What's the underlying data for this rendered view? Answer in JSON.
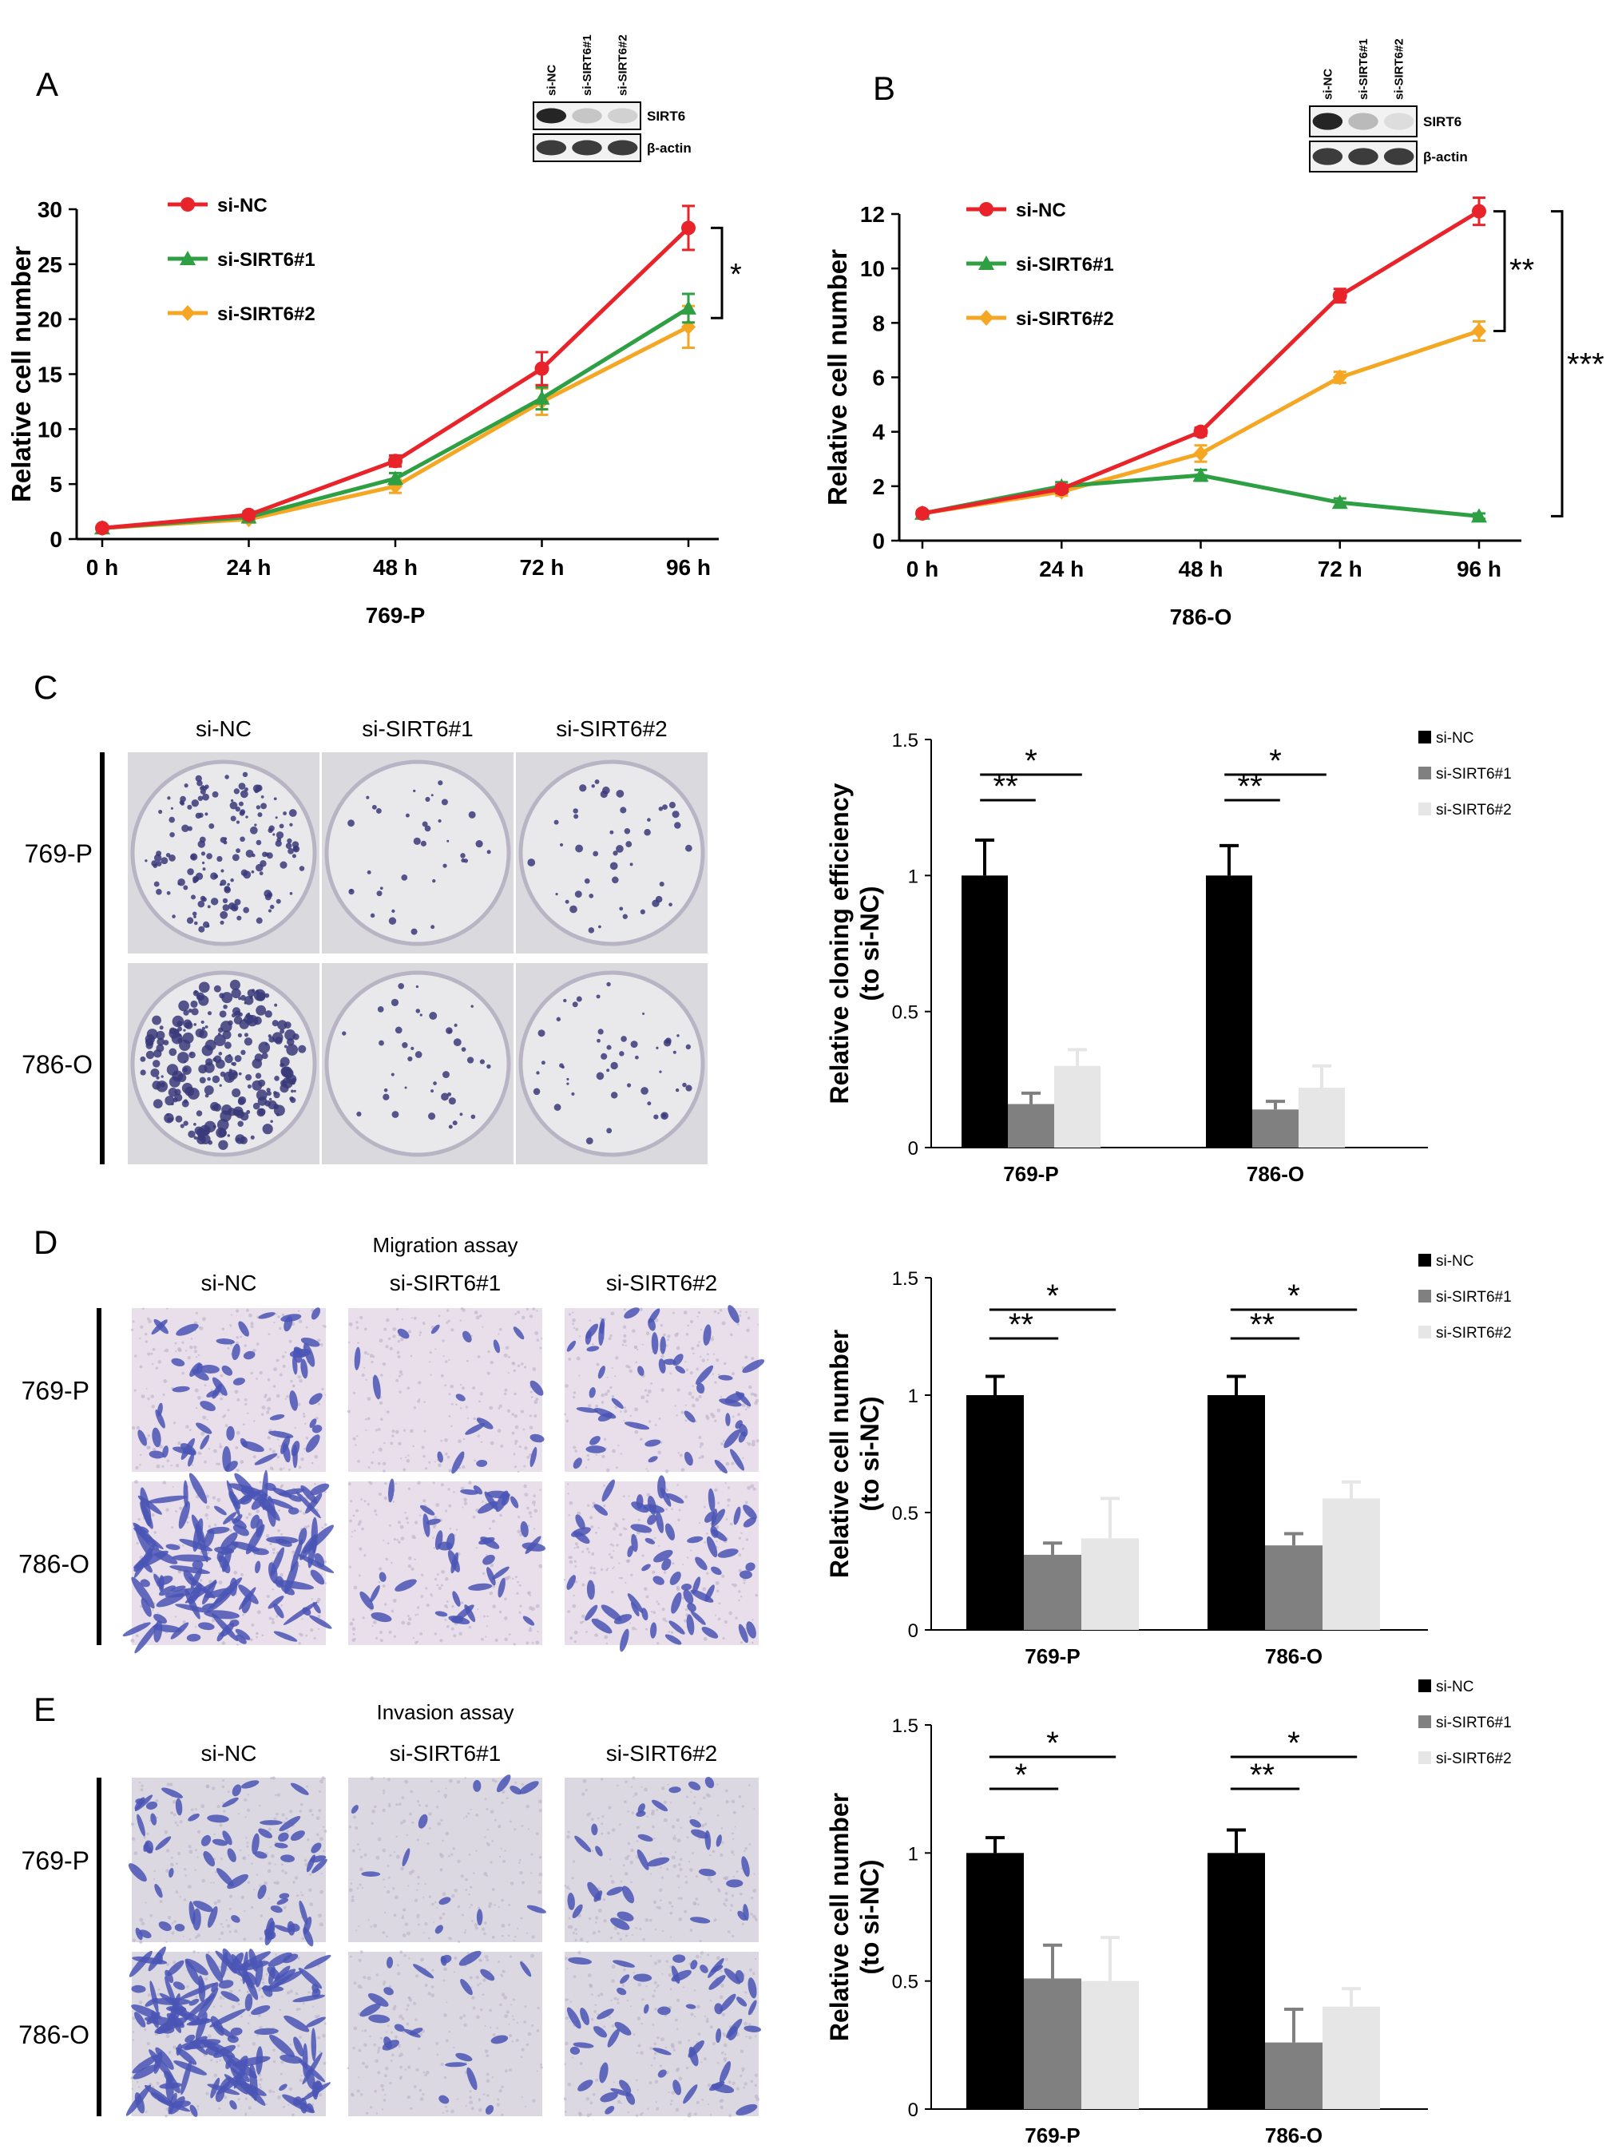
{
  "panels": {
    "A": {
      "letter": "A",
      "cell_line": "769-P",
      "blot": {
        "lanes": [
          "si-NC",
          "si-SIRT6#1",
          "si-SIRT6#2"
        ],
        "bands": [
          "SIRT6",
          "β-actin"
        ],
        "intensity": [
          [
            0.95,
            0.25,
            0.2
          ],
          [
            0.85,
            0.85,
            0.85
          ]
        ]
      },
      "sig_label": "*"
    },
    "B": {
      "letter": "B",
      "cell_line": "786-O",
      "blot": {
        "lanes": [
          "si-NC",
          "si-SIRT6#1",
          "si-SIRT6#2"
        ],
        "bands": [
          "SIRT6",
          "β-actin"
        ],
        "intensity": [
          [
            0.95,
            0.3,
            0.15
          ],
          [
            0.85,
            0.85,
            0.85
          ]
        ]
      },
      "sig_labels": [
        "**",
        "***"
      ]
    },
    "C": {
      "letter": "C",
      "columns": [
        "si-NC",
        "si-SIRT6#1",
        "si-SIRT6#2"
      ],
      "rows": [
        "769-P",
        "786-O"
      ],
      "sig": [
        "**",
        "*"
      ]
    },
    "D": {
      "letter": "D",
      "title": "Migration assay",
      "columns": [
        "si-NC",
        "si-SIRT6#1",
        "si-SIRT6#2"
      ],
      "rows": [
        "769-P",
        "786-O"
      ],
      "sig": [
        "**",
        "*"
      ]
    },
    "E": {
      "letter": "E",
      "title": "Invasion assay",
      "columns": [
        "si-NC",
        "si-SIRT6#1",
        "si-SIRT6#2"
      ],
      "rows": [
        "769-P",
        "786-O"
      ],
      "sig": [
        [
          "*",
          "*"
        ],
        [
          "**",
          "*"
        ]
      ]
    }
  },
  "colors": {
    "si_nc_line": "#e8242a",
    "si_sirt6_1_line": "#2ea043",
    "si_sirt6_2_line": "#f5a623",
    "bar_si_nc": "#000000",
    "bar_si_sirt6_1": "#808080",
    "bar_si_sirt6_2": "#e6e6e6",
    "plate_bg": "#e9e9ec",
    "colony": "#3a3a7a",
    "micro_bg": "#e8dfea",
    "cell": "#4a55b5"
  },
  "chart_data": [
    {
      "id": "A",
      "type": "line",
      "x": [
        "0 h",
        "24 h",
        "48 h",
        "72 h",
        "96 h"
      ],
      "xlabel": "769-P",
      "ylabel": "Relative cell number",
      "ylim": [
        0,
        30
      ],
      "yticks": [
        0,
        5,
        10,
        15,
        20,
        25,
        30
      ],
      "legend": "top-left",
      "series": [
        {
          "name": "si-NC",
          "values": [
            1,
            2.2,
            7.1,
            15.5,
            28.3
          ],
          "err": [
            0.2,
            0.3,
            0.5,
            1.5,
            2.0
          ],
          "marker": "circle"
        },
        {
          "name": "si-SIRT6#1",
          "values": [
            1,
            2.0,
            5.5,
            12.8,
            21.0
          ],
          "err": [
            0.2,
            0.3,
            0.5,
            1.0,
            1.3
          ],
          "marker": "triangle"
        },
        {
          "name": "si-SIRT6#2",
          "values": [
            1,
            1.8,
            4.8,
            12.5,
            19.3
          ],
          "err": [
            0.2,
            0.3,
            0.6,
            1.2,
            1.9
          ],
          "marker": "diamond"
        }
      ]
    },
    {
      "id": "B",
      "type": "line",
      "x": [
        "0 h",
        "24 h",
        "48 h",
        "72 h",
        "96 h"
      ],
      "xlabel": "786-O",
      "ylabel": "Relative cell number",
      "ylim": [
        0,
        12
      ],
      "yticks": [
        0,
        2,
        4,
        6,
        8,
        10,
        12
      ],
      "legend": "top-left",
      "series": [
        {
          "name": "si-NC",
          "values": [
            1,
            1.9,
            4.0,
            9.0,
            12.1
          ],
          "err": [
            0.1,
            0.15,
            0.15,
            0.25,
            0.5
          ],
          "marker": "circle"
        },
        {
          "name": "si-SIRT6#1",
          "values": [
            1,
            2.0,
            2.4,
            1.4,
            0.9
          ],
          "err": [
            0.1,
            0.15,
            0.2,
            0.15,
            0.1
          ],
          "marker": "triangle"
        },
        {
          "name": "si-SIRT6#2",
          "values": [
            1,
            1.8,
            3.2,
            6.0,
            7.7
          ],
          "err": [
            0.1,
            0.15,
            0.3,
            0.2,
            0.35
          ],
          "marker": "diamond"
        }
      ]
    },
    {
      "id": "C",
      "type": "bar",
      "categories": [
        "769-P",
        "786-O"
      ],
      "ylabel": "Relative cloning efficiency (to si-NC)",
      "ylim": [
        0,
        1.5
      ],
      "yticks": [
        "0",
        "0.5",
        "1",
        "1.5"
      ],
      "legend": "top-right",
      "series": [
        {
          "name": "si-NC",
          "values": [
            1.0,
            1.0
          ],
          "err": [
            0.13,
            0.11
          ]
        },
        {
          "name": "si-SIRT6#1",
          "values": [
            0.16,
            0.14
          ],
          "err": [
            0.04,
            0.03
          ]
        },
        {
          "name": "si-SIRT6#2",
          "values": [
            0.3,
            0.22
          ],
          "err": [
            0.06,
            0.08
          ]
        }
      ]
    },
    {
      "id": "D",
      "type": "bar",
      "categories": [
        "769-P",
        "786-O"
      ],
      "ylabel": "Relative cell number (to si-NC)",
      "ylim": [
        0,
        1.5
      ],
      "yticks": [
        "0",
        "0.5",
        "1",
        "1.5"
      ],
      "legend": "top-right",
      "series": [
        {
          "name": "si-NC",
          "values": [
            1.0,
            1.0
          ],
          "err": [
            0.08,
            0.08
          ]
        },
        {
          "name": "si-SIRT6#1",
          "values": [
            0.32,
            0.36
          ],
          "err": [
            0.05,
            0.05
          ]
        },
        {
          "name": "si-SIRT6#2",
          "values": [
            0.39,
            0.56
          ],
          "err": [
            0.17,
            0.07
          ]
        }
      ]
    },
    {
      "id": "E",
      "type": "bar",
      "categories": [
        "769-P",
        "786-O"
      ],
      "ylabel": "Relative cell number (to si-NC)",
      "ylim": [
        0,
        1.5
      ],
      "yticks": [
        "0",
        "0.5",
        "1",
        "1.5"
      ],
      "legend": "top-right",
      "series": [
        {
          "name": "si-NC",
          "values": [
            1.0,
            1.0
          ],
          "err": [
            0.06,
            0.09
          ]
        },
        {
          "name": "si-SIRT6#1",
          "values": [
            0.51,
            0.26
          ],
          "err": [
            0.13,
            0.13
          ]
        },
        {
          "name": "si-SIRT6#2",
          "values": [
            0.5,
            0.4
          ],
          "err": [
            0.17,
            0.07
          ]
        }
      ]
    }
  ]
}
